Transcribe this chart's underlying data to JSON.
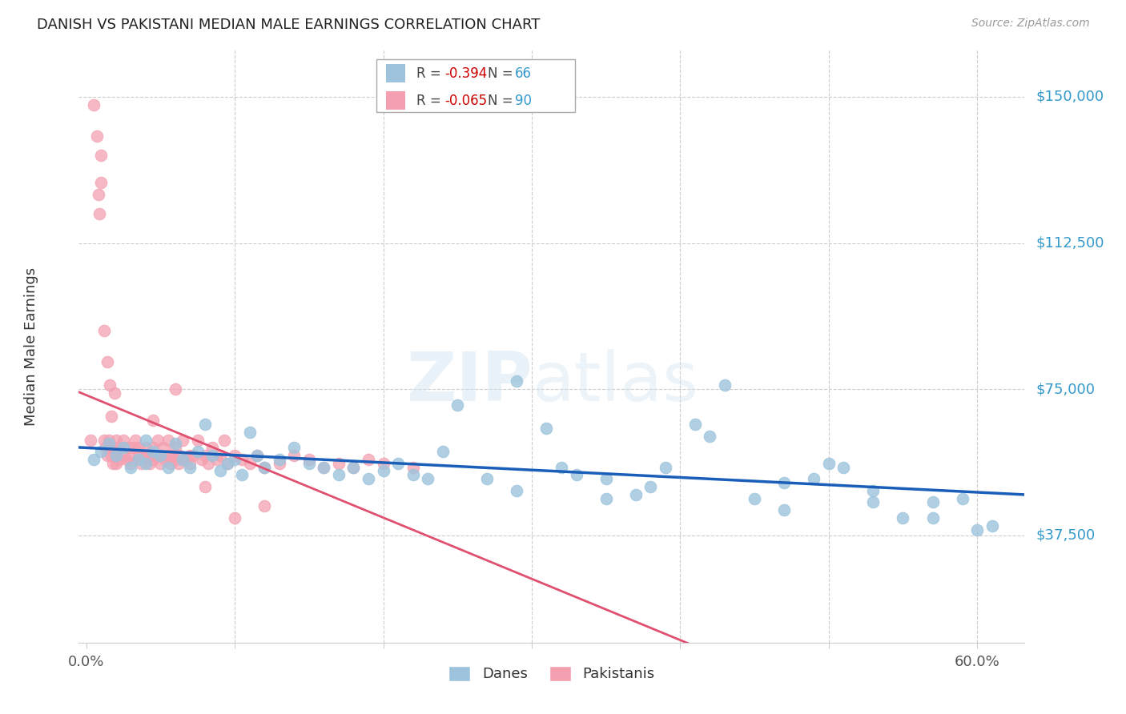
{
  "title": "DANISH VS PAKISTANI MEDIAN MALE EARNINGS CORRELATION CHART",
  "source": "Source: ZipAtlas.com",
  "ylabel": "Median Male Earnings",
  "ytick_labels": [
    "$37,500",
    "$75,000",
    "$112,500",
    "$150,000"
  ],
  "ytick_vals": [
    37500,
    75000,
    112500,
    150000
  ],
  "ylim": [
    10000,
    162000
  ],
  "xlim": [
    -0.005,
    0.632
  ],
  "watermark": "ZIPatlas",
  "legend_blue_r": "-0.394",
  "legend_blue_n": "66",
  "legend_pink_r": "-0.065",
  "legend_pink_n": "90",
  "blue_color": "#9dc4dc",
  "pink_color": "#f4a0b0",
  "trendline_blue": "#1a5eb8",
  "trendline_pink": "#e05070",
  "blue_x": [
    0.005,
    0.01,
    0.015,
    0.02,
    0.025,
    0.03,
    0.035,
    0.04,
    0.04,
    0.045,
    0.05,
    0.055,
    0.06,
    0.065,
    0.07,
    0.075,
    0.08,
    0.085,
    0.09,
    0.095,
    0.1,
    0.105,
    0.11,
    0.115,
    0.12,
    0.13,
    0.14,
    0.15,
    0.16,
    0.17,
    0.18,
    0.19,
    0.2,
    0.21,
    0.22,
    0.23,
    0.24,
    0.25,
    0.27,
    0.29,
    0.31,
    0.33,
    0.35,
    0.37,
    0.39,
    0.41,
    0.43,
    0.45,
    0.47,
    0.49,
    0.51,
    0.53,
    0.55,
    0.57,
    0.59,
    0.61,
    0.29,
    0.32,
    0.35,
    0.38,
    0.42,
    0.47,
    0.5,
    0.53,
    0.57,
    0.6
  ],
  "blue_y": [
    57000,
    59000,
    61000,
    58000,
    60000,
    55000,
    57000,
    62000,
    56000,
    59000,
    58000,
    55000,
    61000,
    57000,
    55000,
    59000,
    66000,
    58000,
    54000,
    56000,
    57000,
    53000,
    64000,
    58000,
    55000,
    57000,
    60000,
    56000,
    55000,
    53000,
    55000,
    52000,
    54000,
    56000,
    53000,
    52000,
    59000,
    71000,
    52000,
    49000,
    65000,
    53000,
    47000,
    48000,
    55000,
    66000,
    76000,
    47000,
    44000,
    52000,
    55000,
    46000,
    42000,
    46000,
    47000,
    40000,
    77000,
    55000,
    52000,
    50000,
    63000,
    51000,
    56000,
    49000,
    42000,
    39000
  ],
  "pink_x": [
    0.003,
    0.005,
    0.007,
    0.008,
    0.009,
    0.01,
    0.01,
    0.012,
    0.013,
    0.014,
    0.015,
    0.015,
    0.017,
    0.018,
    0.019,
    0.02,
    0.02,
    0.02,
    0.022,
    0.022,
    0.025,
    0.025,
    0.027,
    0.028,
    0.03,
    0.03,
    0.032,
    0.033,
    0.035,
    0.035,
    0.037,
    0.038,
    0.04,
    0.04,
    0.042,
    0.043,
    0.045,
    0.045,
    0.047,
    0.048,
    0.05,
    0.05,
    0.052,
    0.053,
    0.055,
    0.055,
    0.057,
    0.058,
    0.06,
    0.06,
    0.062,
    0.063,
    0.065,
    0.067,
    0.07,
    0.07,
    0.072,
    0.075,
    0.078,
    0.08,
    0.082,
    0.085,
    0.088,
    0.09,
    0.093,
    0.095,
    0.1,
    0.105,
    0.11,
    0.115,
    0.12,
    0.13,
    0.14,
    0.15,
    0.16,
    0.17,
    0.18,
    0.19,
    0.2,
    0.22,
    0.012,
    0.014,
    0.016,
    0.017,
    0.019,
    0.045,
    0.06,
    0.08,
    0.1,
    0.12
  ],
  "pink_y": [
    62000,
    148000,
    140000,
    125000,
    120000,
    135000,
    128000,
    62000,
    60000,
    58000,
    62000,
    60000,
    58000,
    56000,
    60000,
    62000,
    58000,
    56000,
    60000,
    57000,
    58000,
    62000,
    57000,
    60000,
    58000,
    56000,
    60000,
    62000,
    58000,
    60000,
    56000,
    58000,
    60000,
    57000,
    58000,
    56000,
    60000,
    57000,
    58000,
    62000,
    58000,
    56000,
    60000,
    57000,
    58000,
    62000,
    56000,
    58000,
    57000,
    60000,
    56000,
    58000,
    62000,
    57000,
    58000,
    56000,
    58000,
    62000,
    57000,
    58000,
    56000,
    60000,
    57000,
    58000,
    62000,
    56000,
    58000,
    57000,
    56000,
    58000,
    55000,
    56000,
    58000,
    57000,
    55000,
    56000,
    55000,
    57000,
    56000,
    55000,
    90000,
    82000,
    76000,
    68000,
    74000,
    67000,
    75000,
    50000,
    42000,
    45000
  ]
}
